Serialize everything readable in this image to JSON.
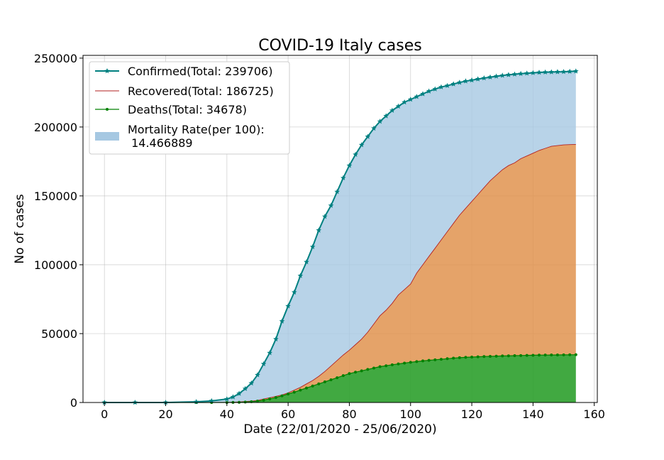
{
  "chart_data": {
    "type": "area",
    "title": "COVID-19 Italy cases",
    "xlabel": "Date (22/01/2020 - 25/06/2020)",
    "ylabel": "No of cases",
    "xlim": [
      -7,
      161
    ],
    "ylim": [
      0,
      252000
    ],
    "xticks": [
      0,
      20,
      40,
      60,
      80,
      100,
      120,
      140,
      160
    ],
    "yticks": [
      0,
      50000,
      100000,
      150000,
      200000,
      250000
    ],
    "grid": true,
    "legend_position": "top-left",
    "x": [
      0,
      10,
      20,
      30,
      35,
      40,
      42,
      44,
      46,
      48,
      50,
      52,
      54,
      56,
      58,
      60,
      62,
      64,
      66,
      68,
      70,
      72,
      74,
      76,
      78,
      80,
      82,
      84,
      86,
      88,
      90,
      92,
      94,
      96,
      98,
      100,
      102,
      104,
      106,
      108,
      110,
      112,
      114,
      116,
      118,
      120,
      122,
      124,
      126,
      128,
      130,
      132,
      134,
      136,
      138,
      140,
      142,
      144,
      146,
      148,
      150,
      152,
      154
    ],
    "series": [
      {
        "name": "Confirmed(Total: 239706)",
        "color": "#008080",
        "values": [
          0,
          0,
          0,
          500,
          1200,
          2500,
          4000,
          6500,
          10000,
          14000,
          20000,
          28000,
          36000,
          46000,
          59000,
          70000,
          80000,
          92000,
          102000,
          113000,
          125000,
          135000,
          143000,
          153000,
          163000,
          172000,
          180000,
          187000,
          193000,
          199000,
          204000,
          208000,
          212000,
          215000,
          218000,
          220000,
          222000,
          224000,
          226000,
          227500,
          229000,
          230000,
          231200,
          232300,
          233300,
          234000,
          234800,
          235500,
          236200,
          236800,
          237400,
          237900,
          238300,
          238700,
          239000,
          239300,
          239600,
          239800,
          239900,
          240000,
          240100,
          240300,
          240500
        ]
      },
      {
        "name": "Recovered(Total: 186725)",
        "color": "#b22222",
        "values": [
          0,
          0,
          0,
          0,
          0,
          100,
          200,
          400,
          700,
          1000,
          1500,
          2500,
          3500,
          4500,
          5500,
          7000,
          9000,
          11000,
          13500,
          16000,
          19000,
          22500,
          26500,
          30500,
          34500,
          38000,
          42000,
          46000,
          51000,
          57000,
          63000,
          67000,
          72000,
          78000,
          82000,
          86000,
          94000,
          100000,
          106000,
          112000,
          118000,
          124000,
          130000,
          136000,
          141000,
          146000,
          151000,
          156000,
          161000,
          165000,
          169000,
          172000,
          174000,
          177000,
          179000,
          181000,
          183000,
          184500,
          186000,
          186500,
          187000,
          187200,
          187400
        ]
      },
      {
        "name": "Deaths(Total: 34678)",
        "color": "#008000",
        "values": [
          0,
          0,
          0,
          0,
          0,
          30,
          80,
          150,
          300,
          600,
          1000,
          1700,
          2600,
          3600,
          4800,
          6200,
          7500,
          9000,
          10500,
          12000,
          13500,
          15000,
          16500,
          18000,
          19500,
          21000,
          22000,
          23000,
          24000,
          25000,
          26000,
          26700,
          27400,
          28000,
          28600,
          29200,
          29700,
          30200,
          30600,
          31000,
          31400,
          31800,
          32200,
          32500,
          32800,
          33000,
          33200,
          33400,
          33500,
          33650,
          33800,
          33900,
          34000,
          34100,
          34200,
          34300,
          34400,
          34450,
          34500,
          34550,
          34600,
          34650,
          34700
        ]
      }
    ],
    "mortality_fill": {
      "name": "Mortality Rate(per 100):",
      "value_text": " 14.466889",
      "color": "#a6c8e2"
    },
    "recovered_fill_color": "#e0934f",
    "deaths_fill_color": "#2ca02c"
  }
}
